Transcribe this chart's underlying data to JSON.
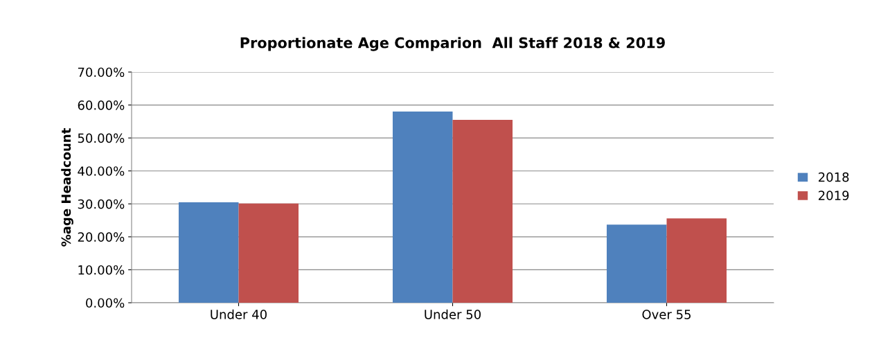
{
  "chart_data": {
    "type": "bar",
    "title": "Proportionate Age Comparion  All Staff 2018 & 2019",
    "ylabel": "%age Headcount",
    "categories": [
      "Under 40",
      "Under 50",
      "Over 55"
    ],
    "series": [
      {
        "name": "2018",
        "color": "#4f81bd",
        "values": [
          30.5,
          58.0,
          23.7
        ]
      },
      {
        "name": "2019",
        "color": "#c0504d",
        "values": [
          30.1,
          55.5,
          25.6
        ]
      }
    ],
    "ylim": [
      0,
      70
    ],
    "yticks": [
      {
        "value": 0,
        "label": "0.00%"
      },
      {
        "value": 10,
        "label": "10.00%"
      },
      {
        "value": 20,
        "label": "20.00%"
      },
      {
        "value": 30,
        "label": "30.00%"
      },
      {
        "value": 40,
        "label": "40.00%"
      },
      {
        "value": 50,
        "label": "50.00%"
      },
      {
        "value": 60,
        "label": "60.00%"
      },
      {
        "value": 70,
        "label": "70.00%"
      }
    ],
    "grid": "y",
    "legend": "right"
  }
}
